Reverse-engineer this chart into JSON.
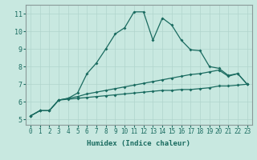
{
  "title": "",
  "xlabel": "Humidex (Indice chaleur)",
  "background_color": "#c8e8e0",
  "grid_color": "#b0d4cc",
  "line_color": "#1a6b60",
  "spine_color": "#8a9a98",
  "x_ticks": [
    0,
    1,
    2,
    3,
    4,
    5,
    6,
    7,
    8,
    9,
    10,
    11,
    12,
    13,
    14,
    15,
    16,
    17,
    18,
    19,
    20,
    21,
    22,
    23
  ],
  "y_ticks": [
    5,
    6,
    7,
    8,
    9,
    10,
    11
  ],
  "xlim": [
    -0.5,
    23.5
  ],
  "ylim": [
    4.7,
    11.5
  ],
  "series1_x": [
    0,
    1,
    2,
    3,
    4,
    5,
    6,
    7,
    8,
    9,
    10,
    11,
    12,
    13,
    14,
    15,
    16,
    17,
    18,
    19,
    20,
    21,
    22,
    23
  ],
  "series1_y": [
    5.2,
    5.5,
    5.5,
    6.1,
    6.15,
    6.2,
    6.25,
    6.3,
    6.35,
    6.4,
    6.45,
    6.5,
    6.55,
    6.6,
    6.65,
    6.65,
    6.7,
    6.7,
    6.75,
    6.8,
    6.9,
    6.9,
    6.95,
    7.0
  ],
  "series2_x": [
    0,
    1,
    2,
    3,
    4,
    5,
    6,
    7,
    8,
    9,
    10,
    11,
    12,
    13,
    14,
    15,
    16,
    17,
    18,
    19,
    20,
    21,
    22,
    23
  ],
  "series2_y": [
    5.2,
    5.5,
    5.5,
    6.1,
    6.2,
    6.3,
    6.45,
    6.55,
    6.65,
    6.75,
    6.85,
    6.95,
    7.05,
    7.15,
    7.25,
    7.35,
    7.45,
    7.55,
    7.6,
    7.7,
    7.8,
    7.45,
    7.6,
    7.0
  ],
  "series3_x": [
    0,
    1,
    2,
    3,
    4,
    5,
    6,
    7,
    8,
    9,
    10,
    11,
    12,
    13,
    14,
    15,
    16,
    17,
    18,
    19,
    20,
    21,
    22,
    23
  ],
  "series3_y": [
    5.2,
    5.5,
    5.5,
    6.1,
    6.2,
    6.5,
    7.6,
    8.2,
    9.0,
    9.85,
    10.2,
    11.1,
    11.1,
    9.5,
    10.75,
    10.35,
    9.5,
    8.95,
    8.9,
    8.0,
    7.9,
    7.5,
    7.6,
    7.0
  ],
  "marker": "D",
  "marker_size": 2.0,
  "line_width": 0.9,
  "tick_fontsize": 5.5,
  "xlabel_fontsize": 6.5
}
